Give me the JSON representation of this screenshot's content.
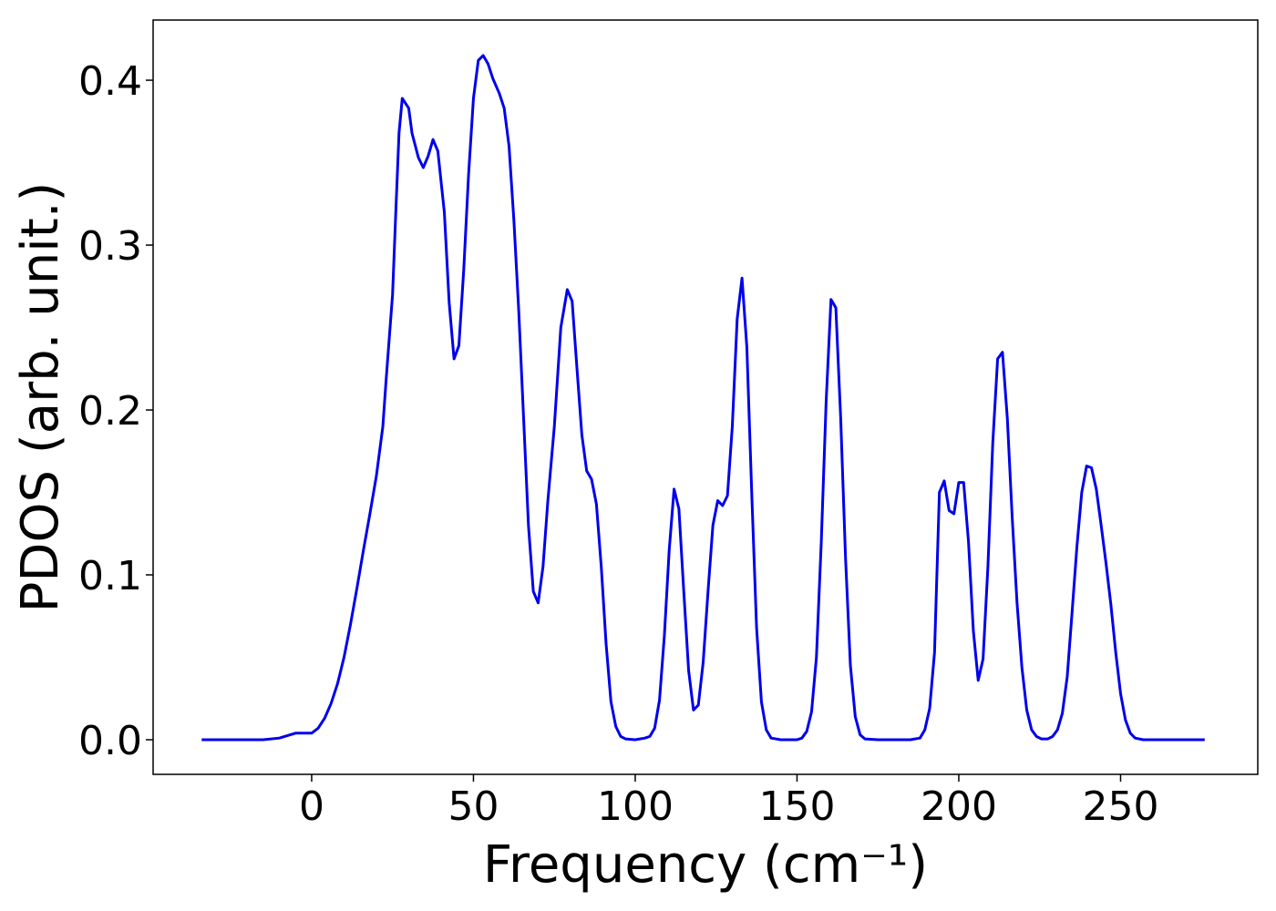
{
  "chart_data": {
    "type": "line",
    "xlabel": "Frequency (cm⁻¹)",
    "ylabel": "PDOS (arb. unit.)",
    "xlim": [
      -49,
      292.4
    ],
    "ylim": [
      -0.021,
      0.4365
    ],
    "xticks": [
      0,
      50,
      100,
      150,
      200,
      250
    ],
    "yticks": [
      {
        "value": 0,
        "label": "0.0"
      },
      0.1,
      0.2,
      0.3,
      0.4
    ],
    "series": [
      {
        "color": "#0000ee",
        "x": [
          -34,
          -15,
          -10,
          -5,
          0,
          2,
          4,
          6,
          8,
          10,
          12,
          14,
          16,
          18,
          20,
          22,
          23,
          25,
          26,
          27,
          28,
          30,
          31,
          33,
          34.5,
          36,
          37.5,
          39,
          41,
          42.5,
          44,
          45.5,
          47,
          48.5,
          50,
          51.5,
          53,
          54.5,
          56,
          58,
          59.5,
          61,
          62.5,
          64,
          65.5,
          67,
          68.5,
          70,
          71.5,
          73,
          75,
          77,
          79,
          80.5,
          82,
          83.5,
          85,
          86.5,
          88,
          89.5,
          91,
          92.5,
          94,
          95.5,
          97,
          100,
          103,
          104.5,
          106,
          107.5,
          109,
          110.5,
          112,
          113.5,
          115,
          116.5,
          118,
          119.5,
          121,
          122.5,
          124,
          125.5,
          127,
          128.5,
          130,
          131.5,
          133,
          134.5,
          136,
          137.5,
          139,
          140.5,
          142,
          145,
          150,
          151.5,
          153,
          154.5,
          156,
          157.5,
          159,
          160.5,
          162,
          163.5,
          165,
          166.5,
          168,
          169.5,
          171,
          175,
          185,
          188,
          189.5,
          191,
          192.5,
          194,
          195.5,
          197,
          198.5,
          200,
          201.5,
          203,
          204.5,
          206,
          207.5,
          209,
          210.5,
          212,
          213.5,
          215,
          216.5,
          218,
          219.5,
          221,
          222.5,
          224,
          225.5,
          227.5,
          229,
          230.5,
          232,
          233.5,
          235,
          236.5,
          238,
          239.5,
          241,
          242.5,
          244,
          245.5,
          247,
          248.5,
          250,
          251.5,
          253,
          254.5,
          257,
          276
        ],
        "values": [
          0,
          0,
          0.001,
          0.004,
          0.004,
          0.007,
          0.013,
          0.022,
          0.034,
          0.05,
          0.07,
          0.092,
          0.115,
          0.137,
          0.16,
          0.19,
          0.218,
          0.27,
          0.32,
          0.368,
          0.389,
          0.383,
          0.368,
          0.353,
          0.347,
          0.354,
          0.364,
          0.357,
          0.32,
          0.265,
          0.231,
          0.239,
          0.285,
          0.343,
          0.389,
          0.412,
          0.415,
          0.41,
          0.401,
          0.392,
          0.383,
          0.36,
          0.315,
          0.26,
          0.195,
          0.13,
          0.09,
          0.083,
          0.105,
          0.145,
          0.19,
          0.25,
          0.273,
          0.266,
          0.225,
          0.185,
          0.163,
          0.158,
          0.143,
          0.105,
          0.058,
          0.023,
          0.008,
          0.002,
          0.0005,
          0,
          0.001,
          0.002,
          0.007,
          0.024,
          0.063,
          0.115,
          0.152,
          0.14,
          0.09,
          0.042,
          0.018,
          0.021,
          0.047,
          0.09,
          0.13,
          0.145,
          0.142,
          0.148,
          0.19,
          0.255,
          0.28,
          0.238,
          0.15,
          0.068,
          0.023,
          0.006,
          0.001,
          0,
          0,
          0.001,
          0.005,
          0.017,
          0.05,
          0.12,
          0.205,
          0.267,
          0.262,
          0.195,
          0.11,
          0.045,
          0.014,
          0.003,
          0.0005,
          0,
          0,
          0.001,
          0.006,
          0.019,
          0.053,
          0.15,
          0.157,
          0.139,
          0.137,
          0.156,
          0.156,
          0.12,
          0.066,
          0.036,
          0.049,
          0.105,
          0.18,
          0.231,
          0.235,
          0.195,
          0.135,
          0.083,
          0.044,
          0.018,
          0.006,
          0.002,
          0.0005,
          0.0005,
          0.002,
          0.006,
          0.016,
          0.038,
          0.077,
          0.117,
          0.15,
          0.166,
          0.165,
          0.152,
          0.13,
          0.107,
          0.082,
          0.053,
          0.028,
          0.012,
          0.004,
          0.001,
          0,
          0
        ]
      }
    ]
  }
}
